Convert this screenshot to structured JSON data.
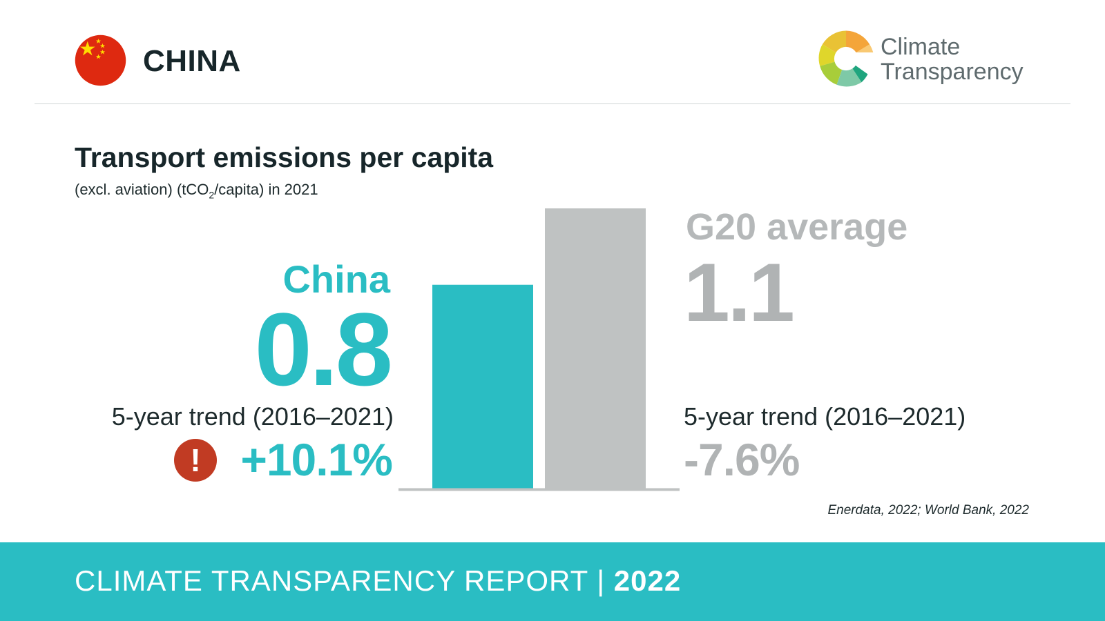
{
  "header": {
    "country": "CHINA",
    "logo_line1": "Climate",
    "logo_line2": "Transparency"
  },
  "chart_data": {
    "type": "bar",
    "title": "Transport emissions per capita",
    "subtitle_pre": "(excl. aviation) (tCO",
    "subtitle_sub": "2",
    "subtitle_post": "/capita) in 2021",
    "categories": [
      "China",
      "G20 average"
    ],
    "values": [
      0.8,
      1.1
    ],
    "value_labels": [
      "0.8",
      "1.1"
    ],
    "colors": [
      "#2abdc3",
      "#bfc2c2"
    ],
    "trend_label": "5-year trend (2016–2021)",
    "trends": [
      "+10.1%",
      "-7.6%"
    ],
    "source": "Enerdata, 2022; World Bank, 2022"
  },
  "footer": {
    "report": "CLIMATE TRANSPARENCY REPORT",
    "separator": "|",
    "year": "2022"
  }
}
